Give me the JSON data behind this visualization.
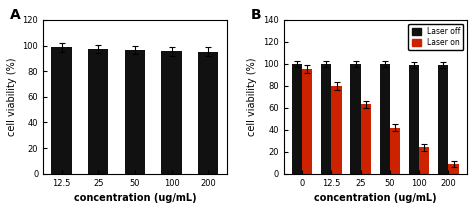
{
  "panel_A": {
    "categories": [
      "12.5",
      "25",
      "50",
      "100",
      "200"
    ],
    "values": [
      98.5,
      97.5,
      96.5,
      95.5,
      95.0
    ],
    "errors": [
      3.5,
      3.0,
      3.5,
      3.5,
      3.5
    ],
    "bar_color": "#111111",
    "ylabel": "cell viability (%)",
    "xlabel": "concentration (ug/mL)",
    "ylim": [
      0,
      120
    ],
    "yticks": [
      0,
      20,
      40,
      60,
      80,
      100,
      120
    ],
    "label": "A"
  },
  "panel_B": {
    "categories": [
      "0",
      "12.5",
      "25",
      "50",
      "100",
      "200"
    ],
    "values_black": [
      100.0,
      100.0,
      100.0,
      100.0,
      99.0,
      99.0
    ],
    "errors_black": [
      3.0,
      2.5,
      2.5,
      2.5,
      2.5,
      2.5
    ],
    "values_red": [
      95.0,
      80.0,
      63.0,
      42.0,
      24.0,
      9.0
    ],
    "errors_red": [
      3.5,
      3.5,
      3.5,
      3.5,
      3.0,
      2.5
    ],
    "color_black": "#111111",
    "color_red": "#cc2200",
    "ylabel": "cell viability (%)",
    "xlabel": "concentration (ug/mL)",
    "ylim": [
      0,
      140
    ],
    "yticks": [
      0,
      20,
      40,
      60,
      80,
      100,
      120,
      140
    ],
    "legend_labels": [
      "Laser off",
      "Laser on"
    ],
    "label": "B"
  }
}
